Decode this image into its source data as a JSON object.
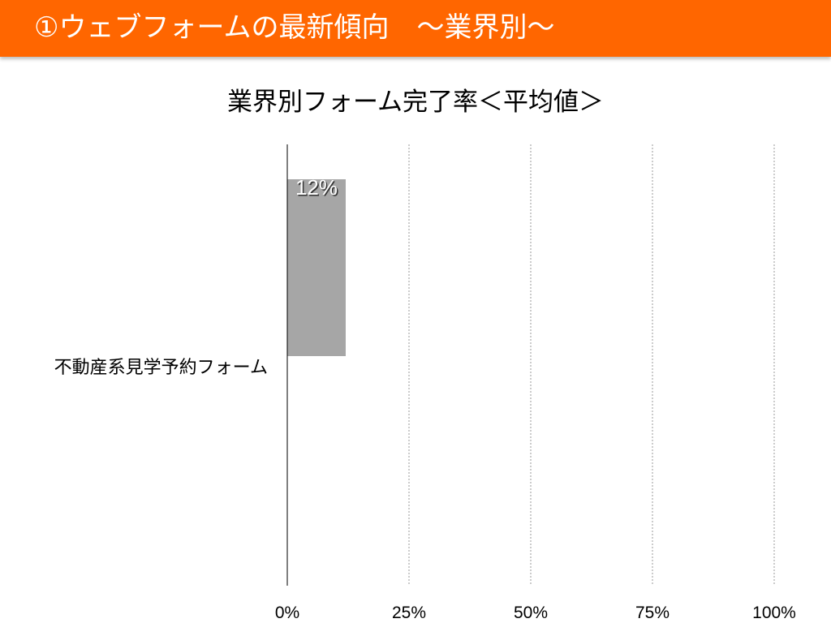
{
  "header": {
    "title": "①ウェブフォームの最新傾向　～業界別～",
    "background_color": "#ff6600",
    "text_color": "#ffffff"
  },
  "chart_data": {
    "type": "bar",
    "orientation": "horizontal",
    "title": "業界別フォーム完了率＜平均値＞",
    "categories": [
      "不動産系見学予約フォーム"
    ],
    "values": [
      12
    ],
    "data_labels": [
      "12%"
    ],
    "bar_color": "#a6a6a6",
    "xlim": [
      0,
      100
    ],
    "xticks": [
      0,
      25,
      50,
      75,
      100
    ],
    "xtick_labels": [
      "0%",
      "25%",
      "50%",
      "75%",
      "100%"
    ],
    "grid": "vertical-dotted",
    "legend": "none",
    "xlabel": "",
    "ylabel": ""
  }
}
